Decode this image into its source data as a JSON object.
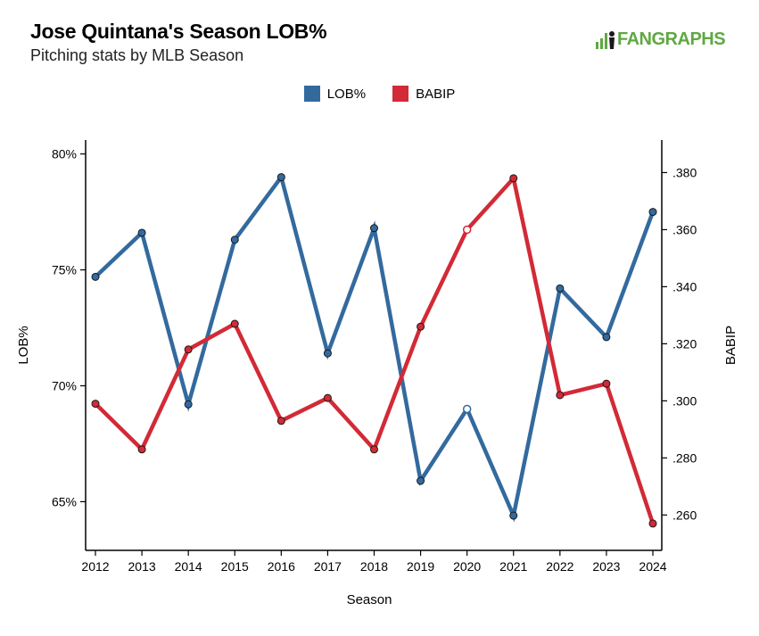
{
  "title": "Jose Quintana's Season LOB%",
  "subtitle": "Pitching stats by MLB Season",
  "brand": "FANGRAPHS",
  "chart_data": {
    "type": "line",
    "xlabel": "Season",
    "ylabel_left": "LOB%",
    "ylabel_right": "BABIP",
    "categories": [
      "2012",
      "2013",
      "2014",
      "2015",
      "2016",
      "2017",
      "2018",
      "2019",
      "2020",
      "2021",
      "2022",
      "2023",
      "2024"
    ],
    "left_axis": {
      "range": [
        62.9,
        80.6
      ],
      "ticks": [
        65,
        70,
        75,
        80
      ],
      "tick_labels": [
        "65%",
        "70%",
        "75%",
        "80%"
      ]
    },
    "right_axis": {
      "range": [
        0.2476,
        0.3914
      ],
      "ticks": [
        0.26,
        0.28,
        0.3,
        0.32,
        0.34,
        0.36,
        0.38
      ],
      "tick_labels": [
        ".260",
        ".280",
        ".300",
        ".320",
        ".340",
        ".360",
        ".380"
      ]
    },
    "series": [
      {
        "name": "LOB%",
        "axis": "left",
        "color": "#336a9e",
        "values": [
          74.7,
          76.6,
          69.2,
          76.3,
          79.0,
          71.4,
          76.8,
          65.9,
          69.0,
          64.4,
          74.2,
          72.1,
          77.5
        ],
        "hollow": [
          false,
          false,
          false,
          false,
          false,
          false,
          false,
          false,
          true,
          false,
          false,
          false,
          false
        ]
      },
      {
        "name": "BABIP",
        "axis": "right",
        "color": "#d22a36",
        "values": [
          0.299,
          0.283,
          0.318,
          0.327,
          0.293,
          0.301,
          0.283,
          0.326,
          0.36,
          0.378,
          0.302,
          0.306,
          0.257
        ],
        "hollow": [
          false,
          false,
          false,
          false,
          false,
          false,
          false,
          false,
          true,
          false,
          false,
          false,
          false
        ]
      }
    ]
  }
}
